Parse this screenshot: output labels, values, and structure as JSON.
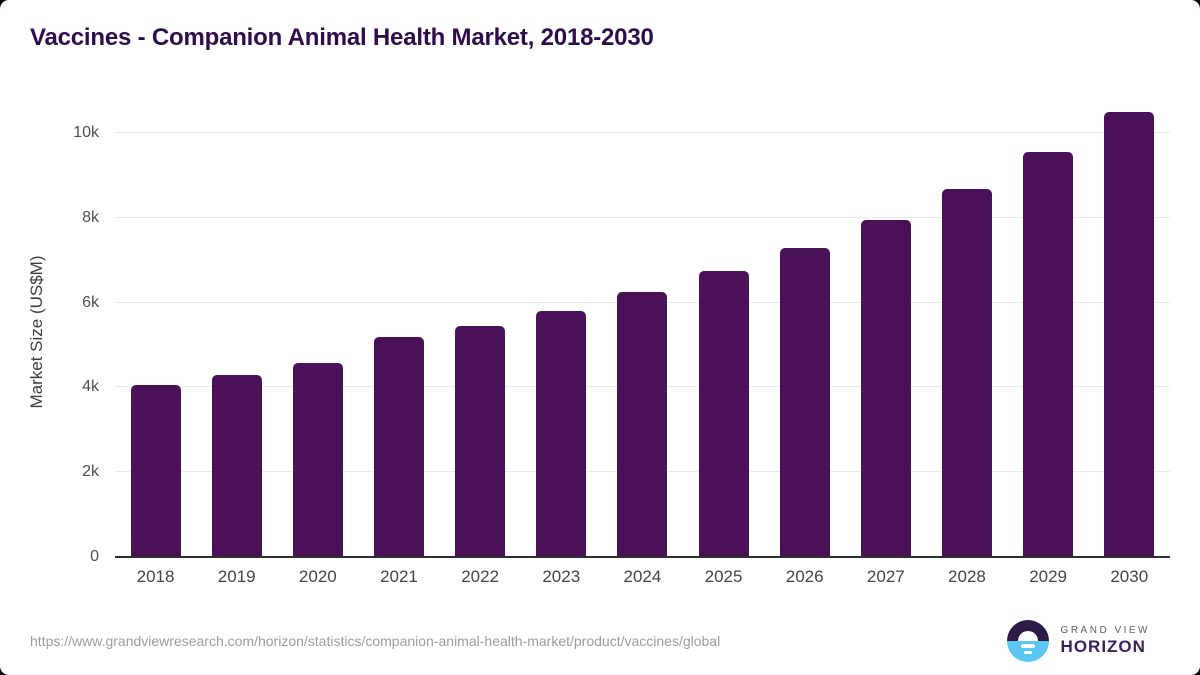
{
  "page": {
    "title": "Vaccines - Companion Animal Health Market, 2018-2030"
  },
  "chart_data": {
    "type": "bar",
    "title": "Vaccines - Companion Animal Health Market, 2018-2030",
    "categories": [
      "2018",
      "2019",
      "2020",
      "2021",
      "2022",
      "2023",
      "2024",
      "2025",
      "2026",
      "2027",
      "2028",
      "2029",
      "2030"
    ],
    "values": [
      4050,
      4300,
      4575,
      5200,
      5450,
      5800,
      6250,
      6750,
      7300,
      7950,
      8680,
      9550,
      10500
    ],
    "xlabel": "",
    "ylabel": "Market Size (US$M)",
    "ylim": [
      0,
      10500
    ],
    "yticks": [
      {
        "value": 0,
        "label": "0"
      },
      {
        "value": 2000,
        "label": "2k"
      },
      {
        "value": 4000,
        "label": "4k"
      },
      {
        "value": 6000,
        "label": "6k"
      },
      {
        "value": 8000,
        "label": "8k"
      },
      {
        "value": 10000,
        "label": "10k"
      }
    ],
    "grid": true,
    "legend": false,
    "bar_color": "#4a1158"
  },
  "footer": {
    "source_url": "https://www.grandviewresearch.com/horizon/statistics/companion-animal-health-market/product/vaccines/global",
    "logo": {
      "line1": "GRAND VIEW",
      "line2": "HORIZON",
      "icon": "horizon-sun-icon",
      "icon_top_color": "#2e1a47",
      "icon_bottom_color": "#5bc6f2"
    }
  },
  "colors": {
    "title": "#2f0d4c",
    "bar": "#4a1158",
    "gridline": "#e9e9e9",
    "axis_line": "#2f2f2f",
    "tick_label": "#4f4f4f",
    "footer_text": "#9c9c9c"
  }
}
